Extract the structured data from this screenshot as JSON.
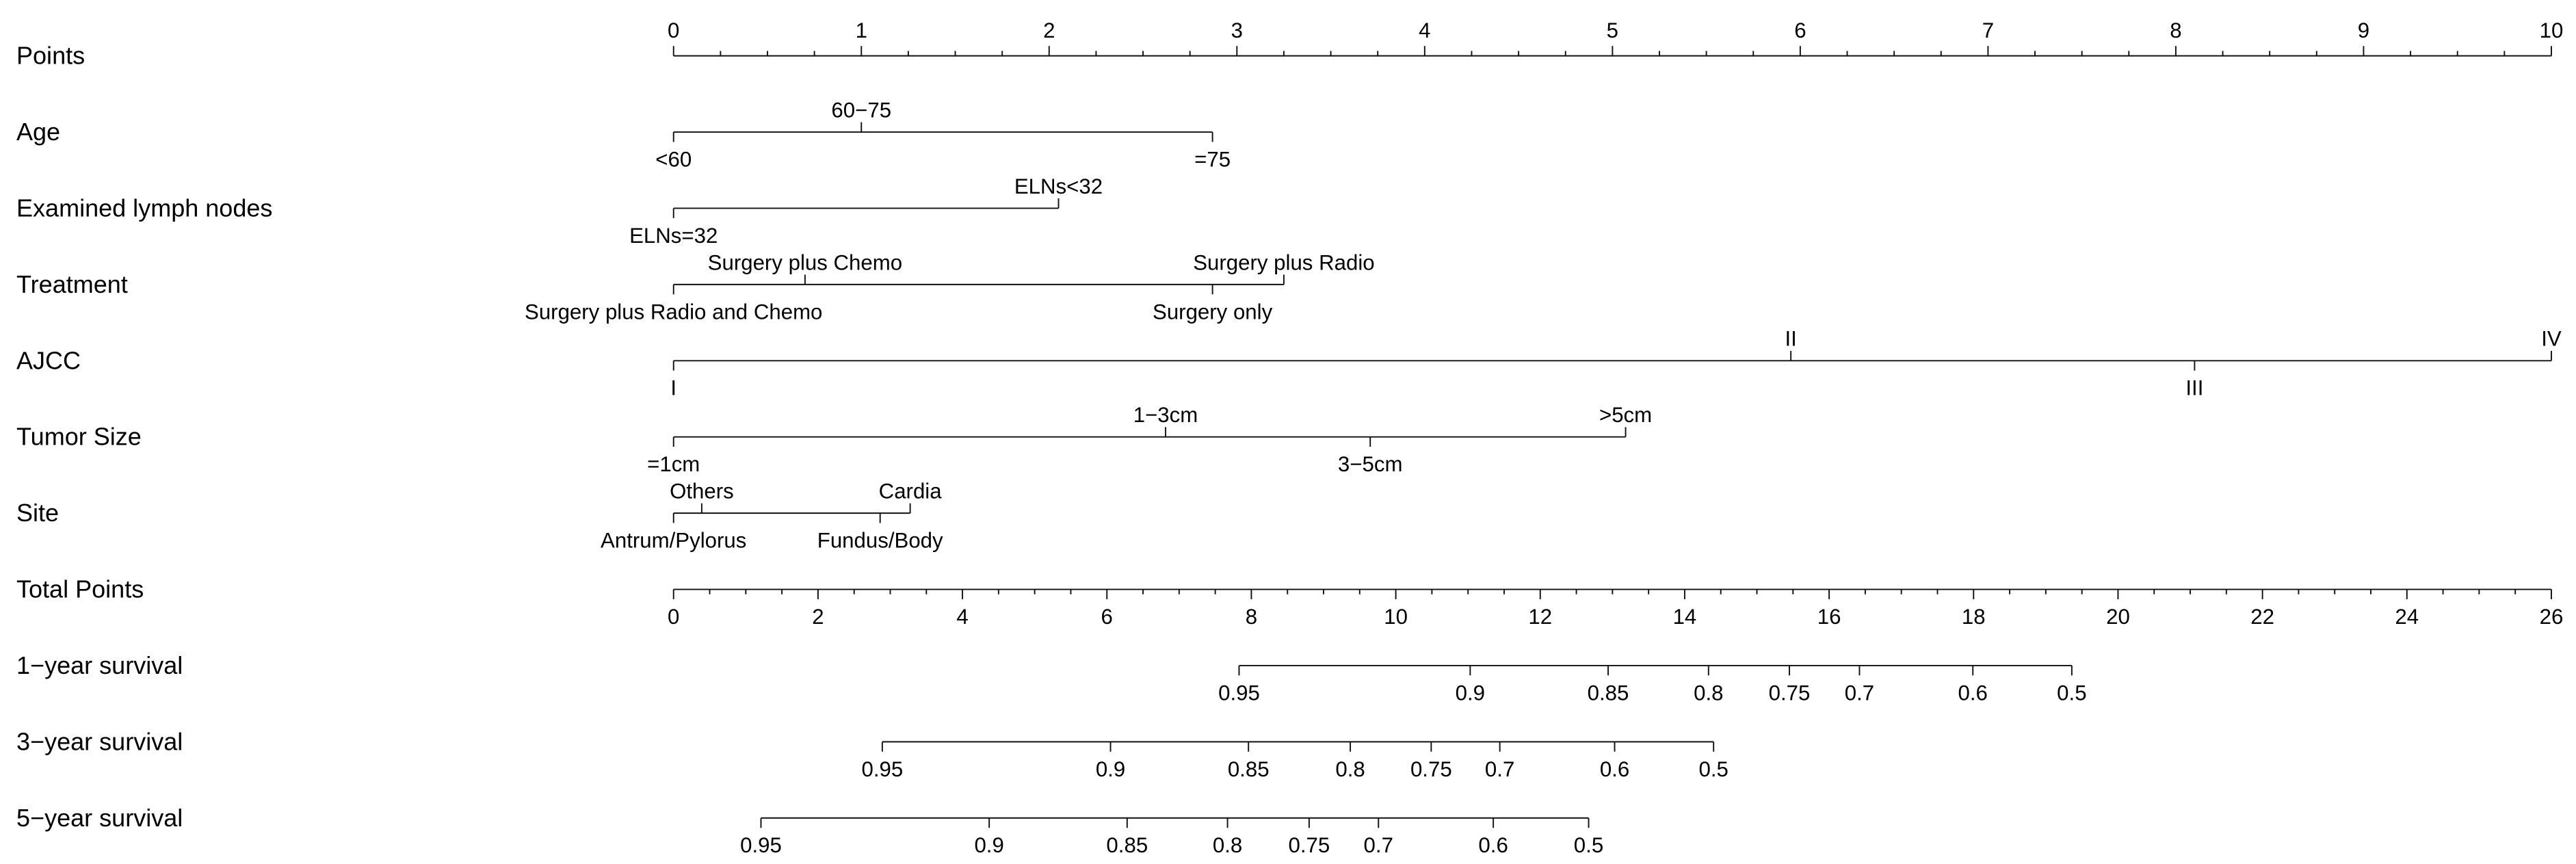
{
  "chart_data": {
    "type": "nomogram",
    "line_color": "#111111",
    "points_axis": {
      "label": "Points",
      "range": [
        0,
        10
      ],
      "ticks": [
        0,
        1,
        2,
        3,
        4,
        5,
        6,
        7,
        8,
        9,
        10
      ]
    },
    "variables": [
      {
        "label": "Age",
        "levels": [
          {
            "label": "<60",
            "points": 0,
            "label_side": "below"
          },
          {
            "label": "60−75",
            "points": 1.0,
            "label_side": "above"
          },
          {
            "label": "=75",
            "points": 2.87,
            "label_side": "below"
          }
        ]
      },
      {
        "label": "Examined lymph nodes",
        "levels": [
          {
            "label": "ELNs=32",
            "points": 0,
            "label_side": "below"
          },
          {
            "label": "ELNs<32",
            "points": 2.05,
            "label_side": "above"
          }
        ]
      },
      {
        "label": "Treatment",
        "levels": [
          {
            "label": "Surgery plus Radio and Chemo",
            "points": 0,
            "label_side": "below"
          },
          {
            "label": "Surgery plus Chemo",
            "points": 0.7,
            "label_side": "above"
          },
          {
            "label": "Surgery only",
            "points": 2.87,
            "label_side": "below"
          },
          {
            "label": "Surgery plus Radio",
            "points": 3.25,
            "label_side": "above"
          }
        ]
      },
      {
        "label": "AJCC",
        "levels": [
          {
            "label": "I",
            "points": 0,
            "label_side": "below"
          },
          {
            "label": "II",
            "points": 5.95,
            "label_side": "above"
          },
          {
            "label": "III",
            "points": 8.1,
            "label_side": "below"
          },
          {
            "label": "IV",
            "points": 10,
            "label_side": "above"
          }
        ]
      },
      {
        "label": "Tumor Size",
        "levels": [
          {
            "label": "=1cm",
            "points": 0,
            "label_side": "below"
          },
          {
            "label": "1−3cm",
            "points": 2.62,
            "label_side": "above"
          },
          {
            "label": "3−5cm",
            "points": 3.71,
            "label_side": "below"
          },
          {
            "label": ">5cm",
            "points": 5.07,
            "label_side": "above"
          }
        ]
      },
      {
        "label": "Site",
        "levels": [
          {
            "label": "Antrum/Pylorus",
            "points": 0,
            "label_side": "below"
          },
          {
            "label": "Others",
            "points": 0.15,
            "label_side": "above"
          },
          {
            "label": "Fundus/Body",
            "points": 1.1,
            "label_side": "below"
          },
          {
            "label": "Cardia",
            "points": 1.26,
            "label_side": "above"
          }
        ]
      }
    ],
    "total_points_axis": {
      "label": "Total Points",
      "range": [
        0,
        26
      ],
      "ticks": [
        0,
        2,
        4,
        6,
        8,
        10,
        12,
        14,
        16,
        18,
        20,
        22,
        24,
        26
      ]
    },
    "survival_axes": [
      {
        "label": "1−year survival",
        "ticks": [
          {
            "label": "0.95",
            "total_points": 7.83
          },
          {
            "label": "0.9",
            "total_points": 11.03
          },
          {
            "label": "0.85",
            "total_points": 12.94
          },
          {
            "label": "0.8",
            "total_points": 14.33
          },
          {
            "label": "0.75",
            "total_points": 15.45
          },
          {
            "label": "0.7",
            "total_points": 16.42
          },
          {
            "label": "0.6",
            "total_points": 17.99
          },
          {
            "label": "0.5",
            "total_points": 19.36
          }
        ]
      },
      {
        "label": "3−year survival",
        "ticks": [
          {
            "label": "0.95",
            "total_points": 2.89
          },
          {
            "label": "0.9",
            "total_points": 6.05
          },
          {
            "label": "0.85",
            "total_points": 7.96
          },
          {
            "label": "0.8",
            "total_points": 9.37
          },
          {
            "label": "0.75",
            "total_points": 10.49
          },
          {
            "label": "0.7",
            "total_points": 11.44
          },
          {
            "label": "0.6",
            "total_points": 13.03
          },
          {
            "label": "0.5",
            "total_points": 14.4
          }
        ]
      },
      {
        "label": "5−year survival",
        "ticks": [
          {
            "label": "0.95",
            "total_points": 1.21
          },
          {
            "label": "0.9",
            "total_points": 4.37
          },
          {
            "label": "0.85",
            "total_points": 6.28
          },
          {
            "label": "0.8",
            "total_points": 7.67
          },
          {
            "label": "0.75",
            "total_points": 8.8
          },
          {
            "label": "0.7",
            "total_points": 9.76
          },
          {
            "label": "0.6",
            "total_points": 11.35
          },
          {
            "label": "0.5",
            "total_points": 12.67
          }
        ]
      }
    ]
  }
}
